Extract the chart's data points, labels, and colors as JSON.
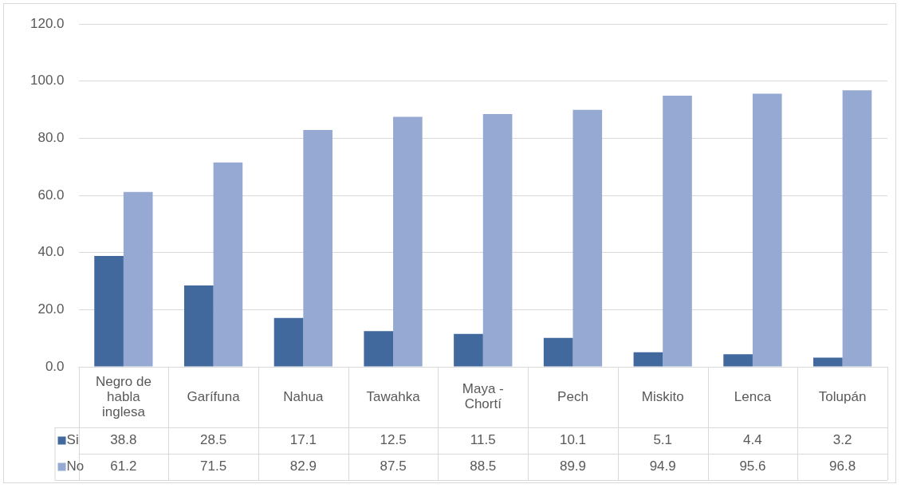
{
  "chart_data": {
    "type": "bar",
    "categories": [
      "Negro de habla inglesa",
      "Garífuna",
      "Nahua",
      "Tawahka",
      "Maya - Chortí",
      "Pech",
      "Miskito",
      "Lenca",
      "Tolupán"
    ],
    "series": [
      {
        "name": "Si",
        "color": "#41699e",
        "values": [
          38.8,
          28.5,
          17.1,
          12.5,
          11.5,
          10.1,
          5.1,
          4.4,
          3.2
        ]
      },
      {
        "name": "No",
        "color": "#95a9d3",
        "values": [
          61.2,
          71.5,
          82.9,
          87.5,
          88.5,
          89.9,
          94.9,
          95.6,
          96.8
        ]
      }
    ],
    "ylim": [
      0,
      120
    ],
    "yticks": [
      {
        "value": 0,
        "label": "0.0"
      },
      {
        "value": 20,
        "label": "20.0"
      },
      {
        "value": 40,
        "label": "40.0"
      },
      {
        "value": 60,
        "label": "60.0"
      },
      {
        "value": 80,
        "label": "80.0"
      },
      {
        "value": 100,
        "label": "100.0"
      },
      {
        "value": 120,
        "label": "120.0"
      }
    ],
    "grid": "y",
    "legend": "bottom",
    "data_labels": true
  }
}
